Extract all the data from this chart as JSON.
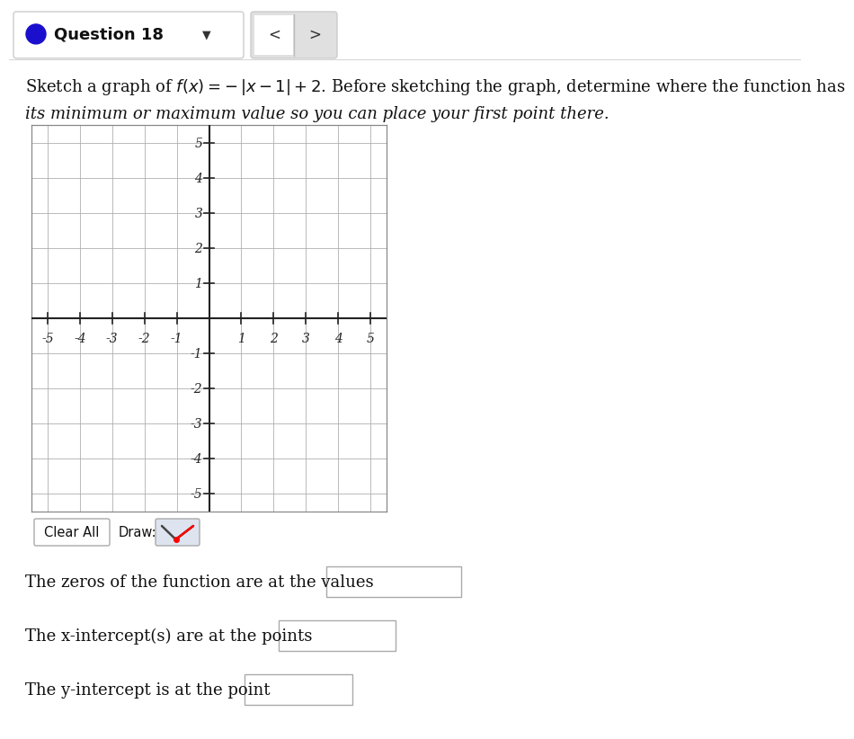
{
  "question_label_text": "Question 18",
  "problem_text_line1": "Sketch a graph of $f(x) = -|x-1|+2$. Before sketching the graph, determine where the function has",
  "problem_text_line2": "its minimum or maximum value so you can place your first point there.",
  "xlim": [
    -5,
    5
  ],
  "ylim": [
    -5,
    5
  ],
  "xticks": [
    -5,
    -4,
    -3,
    -2,
    -1,
    1,
    2,
    3,
    4,
    5
  ],
  "yticks": [
    -5,
    -4,
    -3,
    -2,
    -1,
    1,
    2,
    3,
    4,
    5
  ],
  "grid_color": "#b0b0b0",
  "axis_color": "#222222",
  "bg_color": "#ffffff",
  "header_bg": "#f5f5f5",
  "zeros_label": "The zeros of the function are at the values",
  "xintercept_label": "The x-intercept(s) are at the points",
  "yintercept_label": "The y-intercept is at the point",
  "draw_button_text": "Draw:",
  "clear_button_text": "Clear All",
  "circle_color": "#1a0fcc",
  "text_color": "#111111",
  "input_box_color": "#cccccc",
  "nav_bg": "#e0e0e0"
}
